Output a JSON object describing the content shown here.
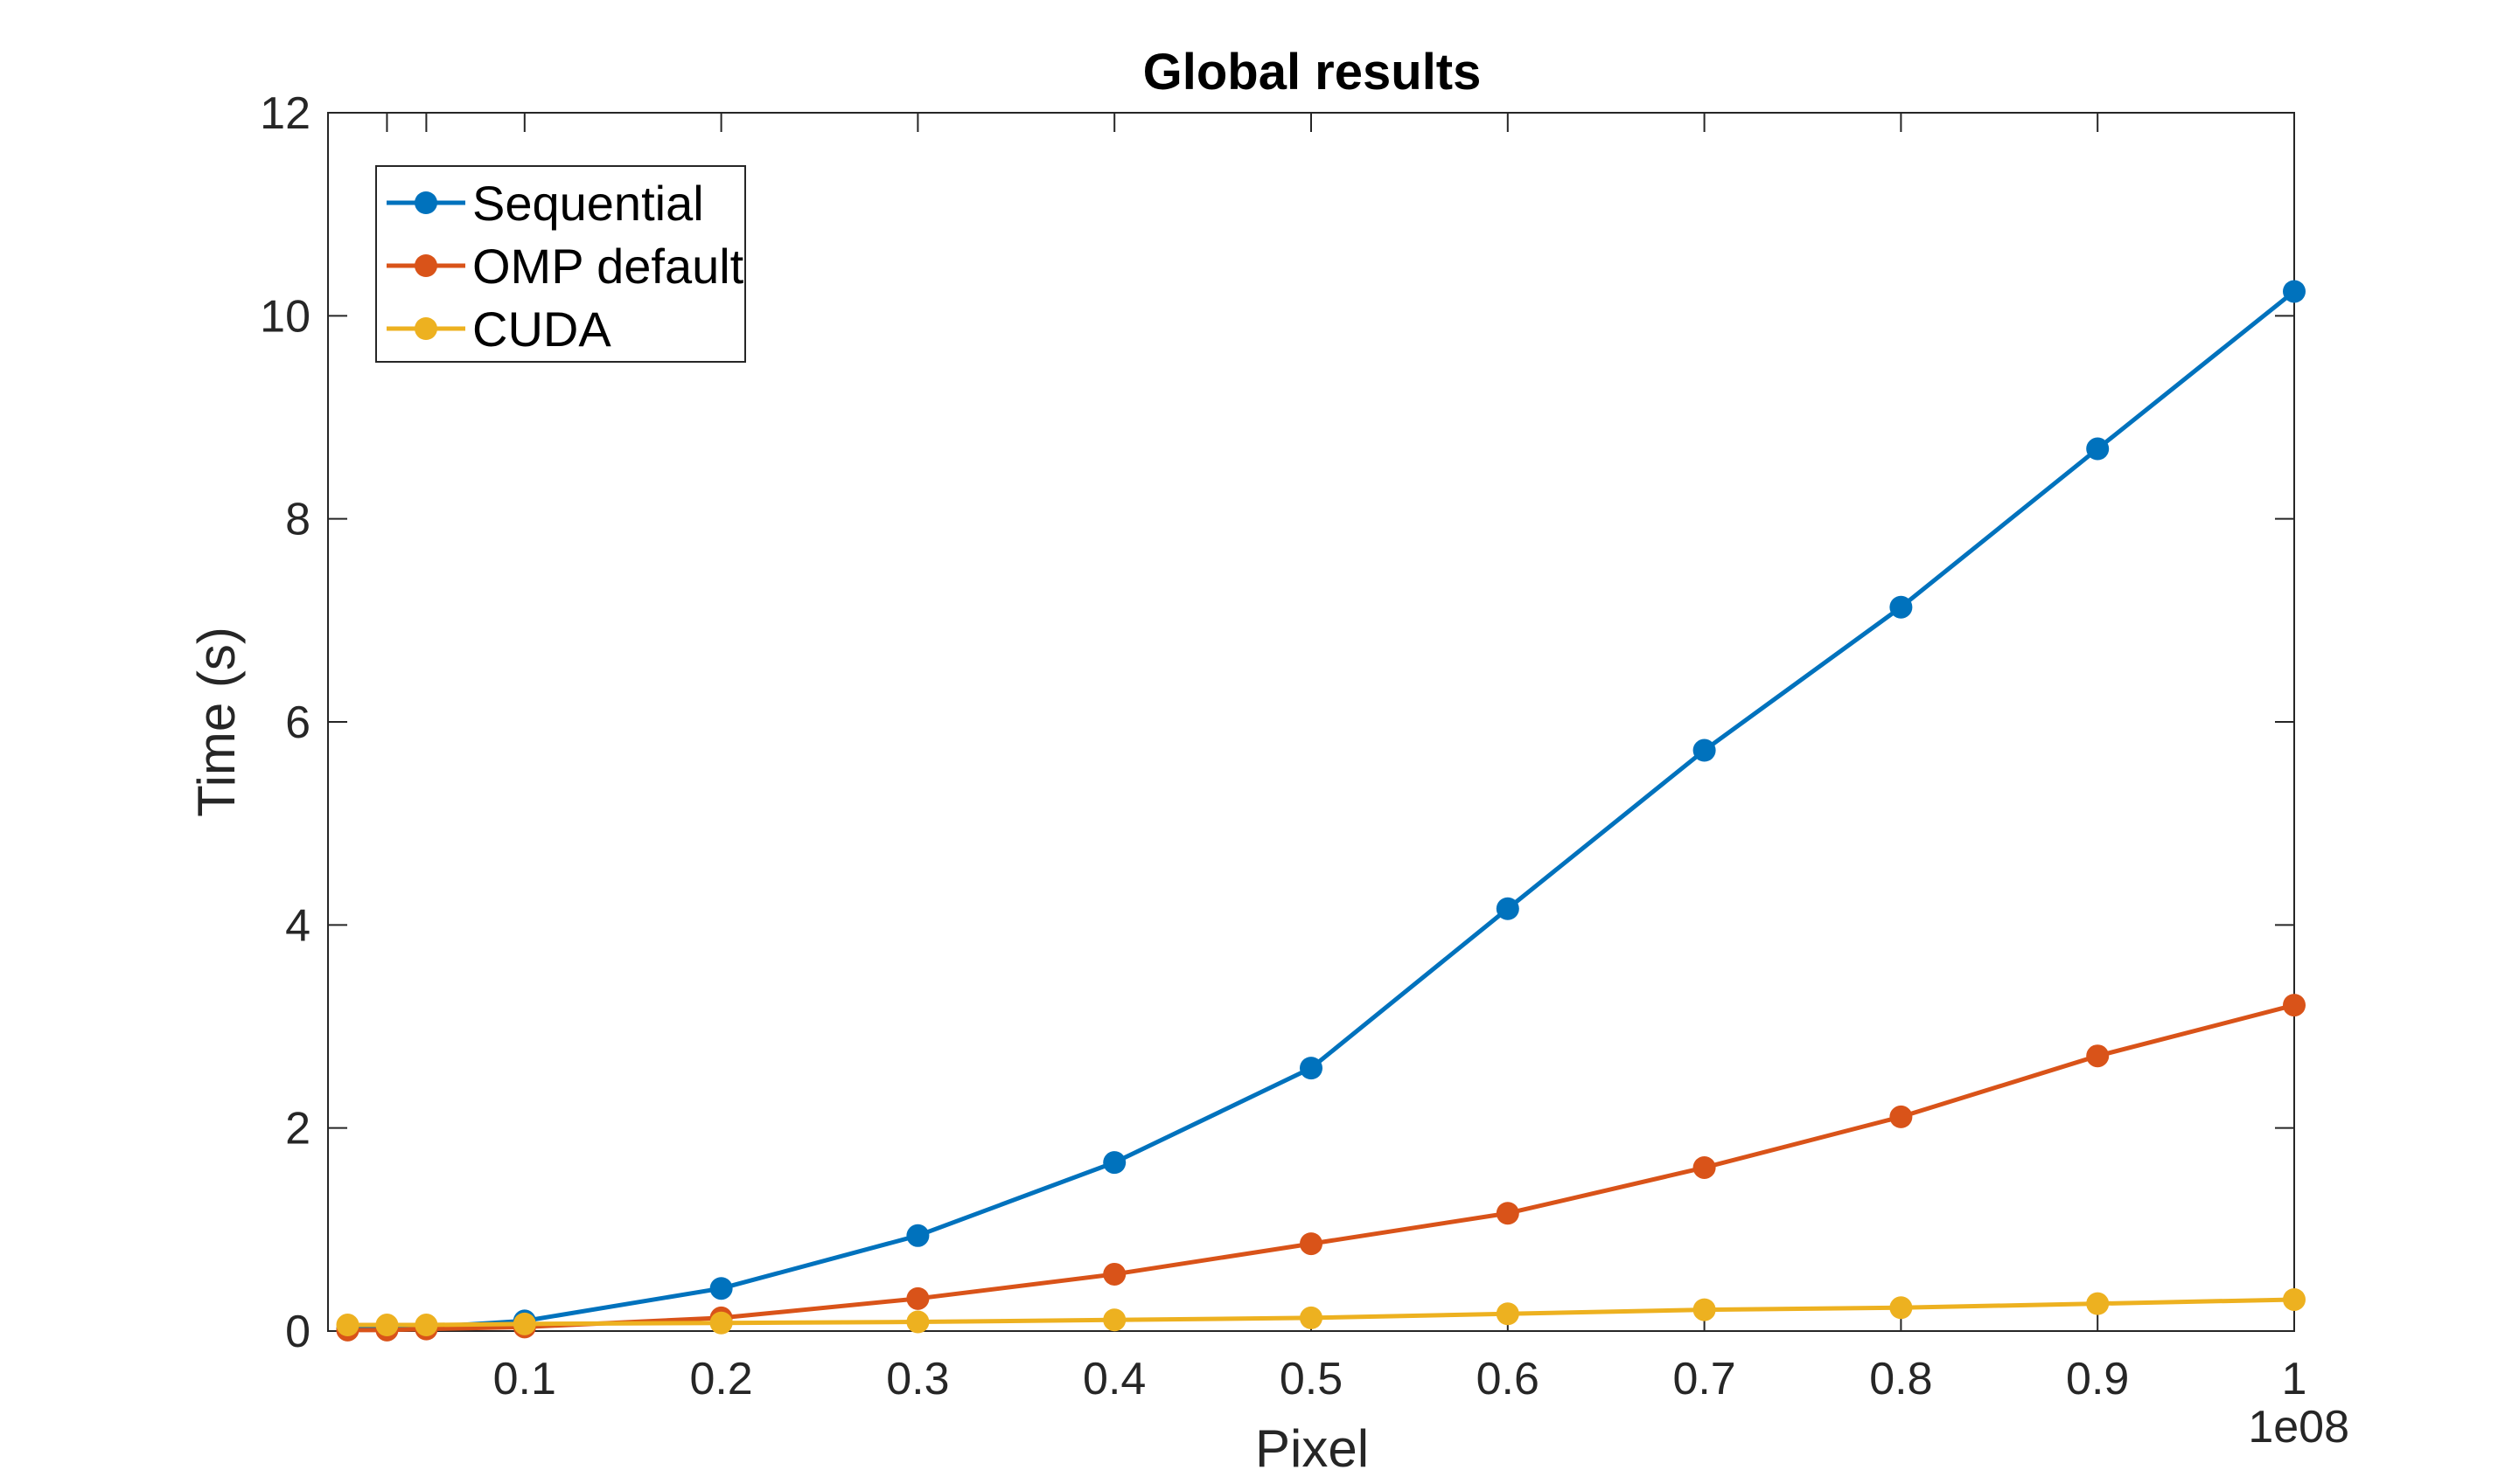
{
  "chart_data": {
    "type": "line",
    "title": "Global results",
    "xlabel": "Pixel",
    "ylabel": "Time (s)",
    "x_exponent_label": "1e08",
    "xlim": [
      0,
      1
    ],
    "ylim": [
      0,
      12
    ],
    "x_ticks": [
      0.1,
      0.2,
      0.3,
      0.4,
      0.5,
      0.6,
      0.7,
      0.8,
      0.9,
      1
    ],
    "x_tick_labels": [
      "0.1",
      "0.2",
      "0.3",
      "0.4",
      "0.5",
      "0.6",
      "0.7",
      "0.8",
      "0.9",
      "1"
    ],
    "y_ticks": [
      0,
      2,
      4,
      6,
      8,
      10,
      12
    ],
    "y_tick_labels": [
      "0",
      "2",
      "4",
      "6",
      "8",
      "10",
      "12"
    ],
    "grid": false,
    "legend_position": "top-left",
    "x": [
      0.01,
      0.03,
      0.05,
      0.1,
      0.2,
      0.3,
      0.4,
      0.5,
      0.6,
      0.7,
      0.8,
      0.9,
      1.0
    ],
    "series": [
      {
        "name": "Sequential",
        "color": "#0072BD",
        "values": [
          0.02,
          0.03,
          0.04,
          0.1,
          0.42,
          0.94,
          1.66,
          2.59,
          4.16,
          5.72,
          7.13,
          8.69,
          10.24
        ]
      },
      {
        "name": "OMP default",
        "color": "#D95319",
        "values": [
          0.01,
          0.01,
          0.02,
          0.04,
          0.13,
          0.32,
          0.56,
          0.86,
          1.16,
          1.61,
          2.11,
          2.71,
          3.21
        ]
      },
      {
        "name": "CUDA",
        "color": "#EDB120",
        "values": [
          0.06,
          0.06,
          0.06,
          0.07,
          0.08,
          0.09,
          0.11,
          0.13,
          0.17,
          0.21,
          0.23,
          0.27,
          0.31
        ]
      }
    ]
  }
}
